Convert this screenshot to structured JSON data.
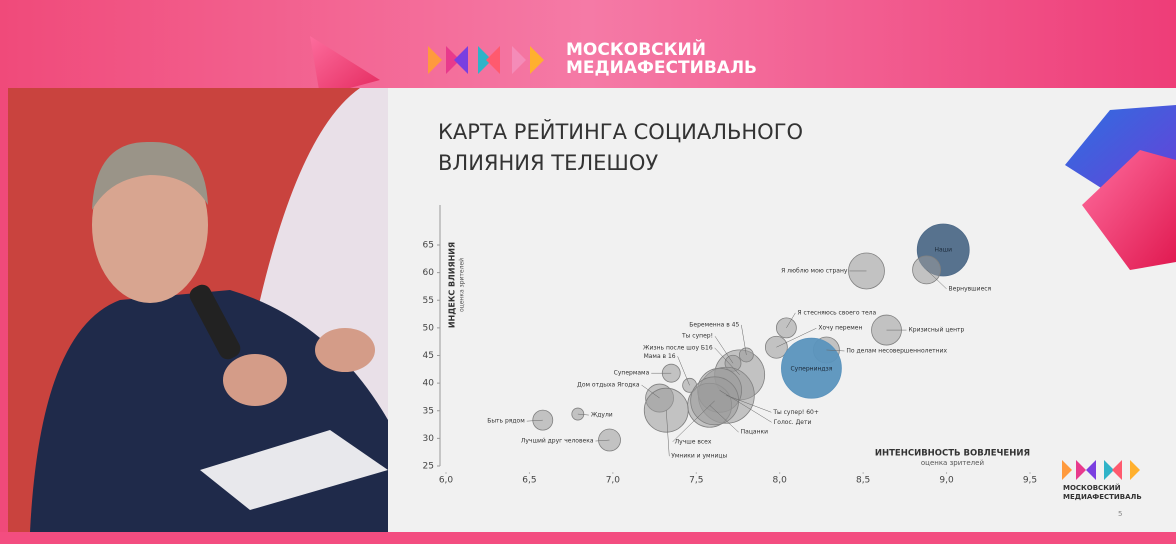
{
  "header": {
    "brand_line1": "МОСКОВСКИЙ",
    "brand_line2": "МЕДИАФЕСТИВАЛЬ"
  },
  "slide": {
    "logo_line1": "МОСКОВСКИЙ",
    "logo_line2": "МЕДИАФЕСТИВАЛЬ",
    "page_number": "5"
  },
  "chart_data": {
    "type": "scatter",
    "title": [
      "КАРТА РЕЙТИНГА СОЦИАЛЬНОГО",
      "ВЛИЯНИЯ ТЕЛЕШОУ"
    ],
    "x_label": "ИНТЕНСИВНОСТЬ ВОВЛЕЧЕНИЯ",
    "x_sublabel": "оценка зрителей",
    "y_label": "ИНДЕКС ВЛИЯНИЯ",
    "y_sublabel": "оценка зрителей",
    "xlim": [
      6.0,
      9.5
    ],
    "xticks": [
      {
        "value": 6.0,
        "label": "6,0"
      },
      {
        "value": 6.5,
        "label": "6,5"
      },
      {
        "value": 7.0,
        "label": "7,0"
      },
      {
        "value": 7.5,
        "label": "7,5"
      },
      {
        "value": 8.0,
        "label": "8,0"
      },
      {
        "value": 8.5,
        "label": "8,5"
      },
      {
        "value": 9.0,
        "label": "9,0"
      },
      {
        "value": 9.5,
        "label": "9,5"
      }
    ],
    "ylim": [
      25,
      65
    ],
    "yticks": [
      25,
      30,
      35,
      40,
      45,
      50,
      55,
      60,
      65
    ],
    "series": [
      {
        "labels": [
          "Быть рядом",
          "Ждули",
          "Лучший друг человека",
          "Дом отдыха Ягодка",
          "Супермама",
          "Мама в 16",
          "Жизнь после шоу Б16",
          "Ты супер!",
          "Беременна в 45",
          "Я стесняюсь своего тела",
          "Хочу перемен",
          "Кризисный центр",
          "По делам несовершеннолетних",
          "Суперниндзя",
          "Я люблю мою страну",
          "Наши",
          "Вернувшиеся",
          "Ты супер! 60+",
          "Голос. Дети",
          "Пацанки",
          "Лучше всех",
          "Умники и умницы"
        ],
        "x": [
          6.58,
          6.79,
          6.98,
          7.28,
          7.35,
          7.46,
          7.76,
          7.72,
          7.8,
          8.04,
          7.98,
          8.64,
          8.28,
          8.19,
          8.52,
          8.98,
          8.88,
          7.68,
          7.64,
          7.58,
          7.61,
          7.32
        ],
        "values": [
          33.3,
          34.4,
          29.7,
          37.3,
          41.8,
          39.6,
          41.5,
          43.6,
          45.1,
          50.0,
          46.5,
          49.6,
          46.0,
          42.7,
          60.3,
          64.1,
          60.5,
          37.8,
          38.7,
          36.0,
          36.8,
          35.1
        ],
        "sizes": [
          10,
          6,
          11,
          14,
          9,
          7,
          25,
          8,
          7,
          10,
          11,
          15,
          13,
          30,
          18,
          26,
          14,
          28,
          22,
          22,
          24,
          22
        ],
        "colors": [
          "#9b9b9b",
          "#9b9b9b",
          "#9b9b9b",
          "#9b9b9b",
          "#9b9b9b",
          "#9b9b9b",
          "#9b9b9b",
          "#9b9b9b",
          "#9b9b9b",
          "#9b9b9b",
          "#9b9b9b",
          "#9b9b9b",
          "#9b9b9b",
          "#5a93bd",
          "#9b9b9b",
          "#4e6a88",
          "#9b9b9b",
          "#9b9b9b",
          "#9b9b9b",
          "#9b9b9b",
          "#9b9b9b",
          "#9b9b9b"
        ]
      }
    ]
  }
}
